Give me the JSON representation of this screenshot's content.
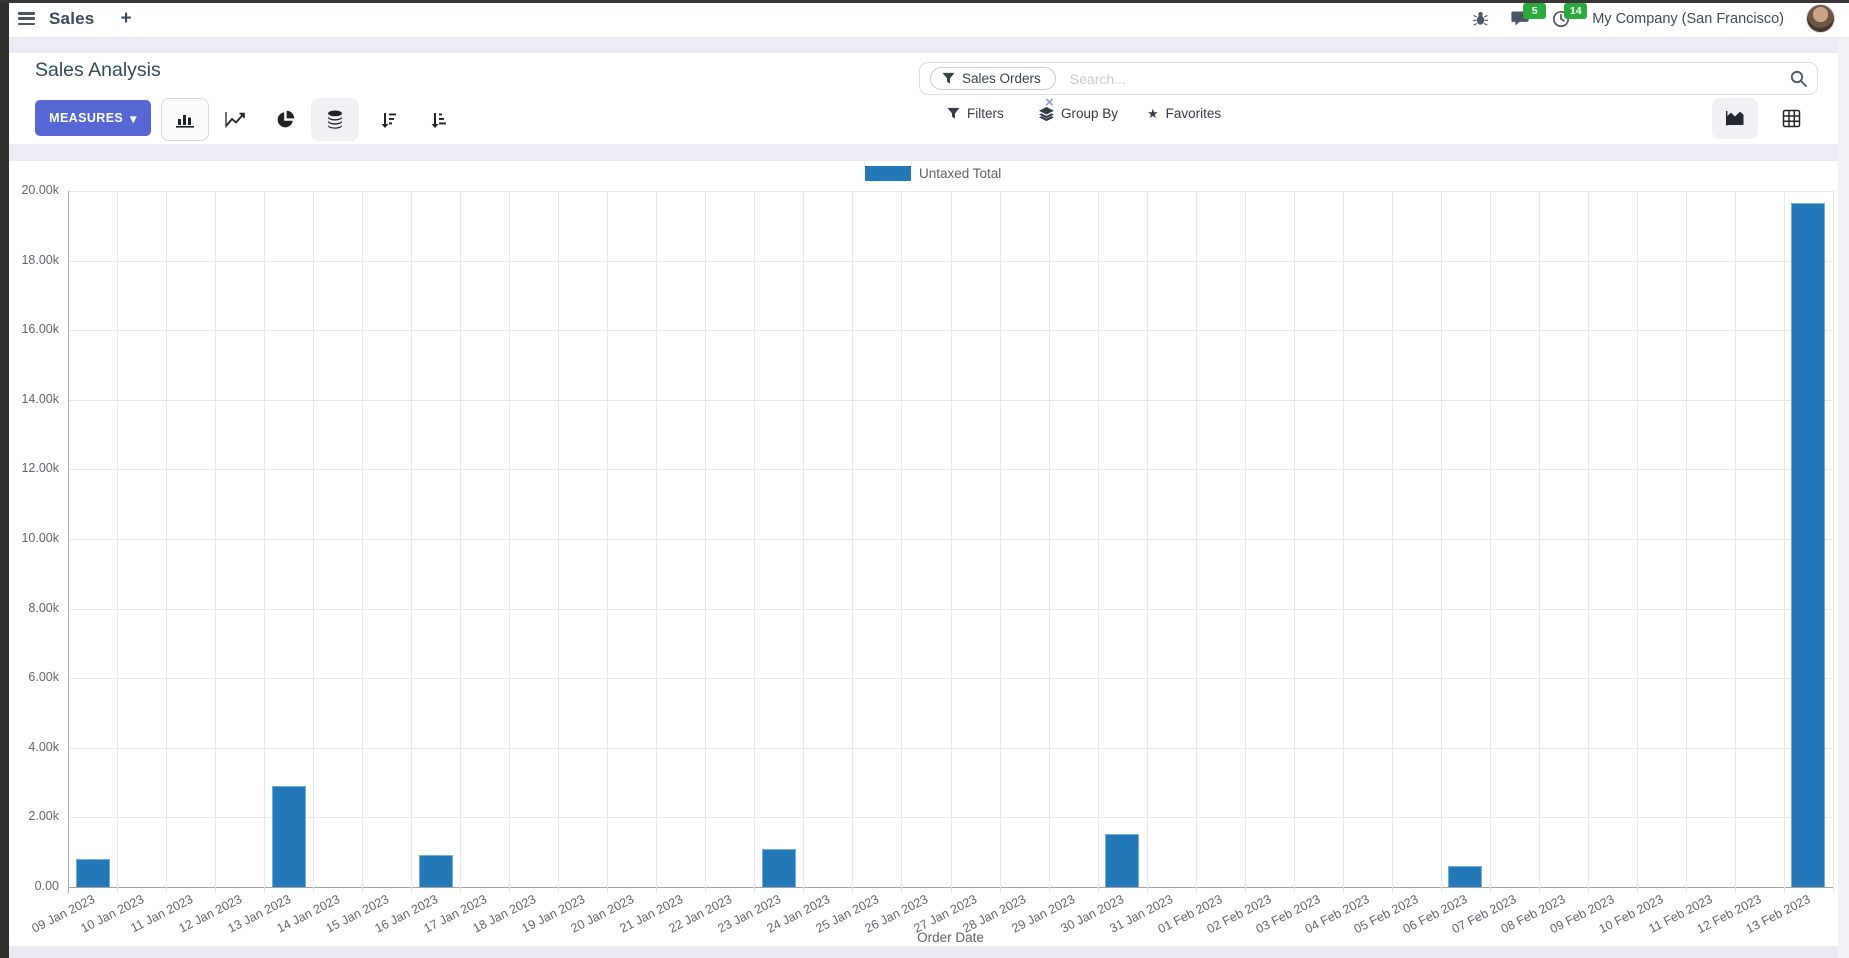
{
  "navbar": {
    "app_name": "Sales",
    "plus": "+",
    "messages_badge": "5",
    "activities_badge": "14",
    "company": "My Company (San Francisco)"
  },
  "control_panel": {
    "title": "Sales Analysis",
    "measures_button": "MEASURES",
    "caret": "▾",
    "search_facet": "Sales Orders",
    "facet_remove": "×",
    "search_placeholder": "Search...",
    "filters": "Filters",
    "group_by": "Group By",
    "favorites": "Favorites",
    "favorites_star": "★"
  },
  "chart_data": {
    "type": "bar",
    "title": "",
    "xlabel": "Order Date",
    "ylabel": "",
    "ylim": [
      0,
      20000
    ],
    "grid": true,
    "legend_position": "top-center",
    "ytick_labels": [
      "0.00",
      "2.00k",
      "4.00k",
      "6.00k",
      "8.00k",
      "10.00k",
      "12.00k",
      "14.00k",
      "16.00k",
      "18.00k",
      "20.00k"
    ],
    "categories": [
      "09 Jan 2023",
      "10 Jan 2023",
      "11 Jan 2023",
      "12 Jan 2023",
      "13 Jan 2023",
      "14 Jan 2023",
      "15 Jan 2023",
      "16 Jan 2023",
      "17 Jan 2023",
      "18 Jan 2023",
      "19 Jan 2023",
      "20 Jan 2023",
      "21 Jan 2023",
      "22 Jan 2023",
      "23 Jan 2023",
      "24 Jan 2023",
      "25 Jan 2023",
      "26 Jan 2023",
      "27 Jan 2023",
      "28 Jan 2023",
      "29 Jan 2023",
      "30 Jan 2023",
      "31 Jan 2023",
      "01 Feb 2023",
      "02 Feb 2023",
      "03 Feb 2023",
      "04 Feb 2023",
      "05 Feb 2023",
      "06 Feb 2023",
      "07 Feb 2023",
      "08 Feb 2023",
      "09 Feb 2023",
      "10 Feb 2023",
      "11 Feb 2023",
      "12 Feb 2023",
      "13 Feb 2023"
    ],
    "series": [
      {
        "name": "Untaxed Total",
        "color": "#2379b8",
        "values": [
          800,
          0,
          0,
          0,
          2900,
          0,
          0,
          910,
          0,
          0,
          0,
          0,
          0,
          0,
          1080,
          0,
          0,
          0,
          0,
          0,
          0,
          1520,
          0,
          0,
          0,
          0,
          0,
          0,
          600,
          0,
          0,
          0,
          0,
          0,
          0,
          19660
        ]
      }
    ]
  },
  "colors": {
    "accent": "#5666d4",
    "bar": "#2379b8",
    "badge_green": "#2aab3c"
  }
}
